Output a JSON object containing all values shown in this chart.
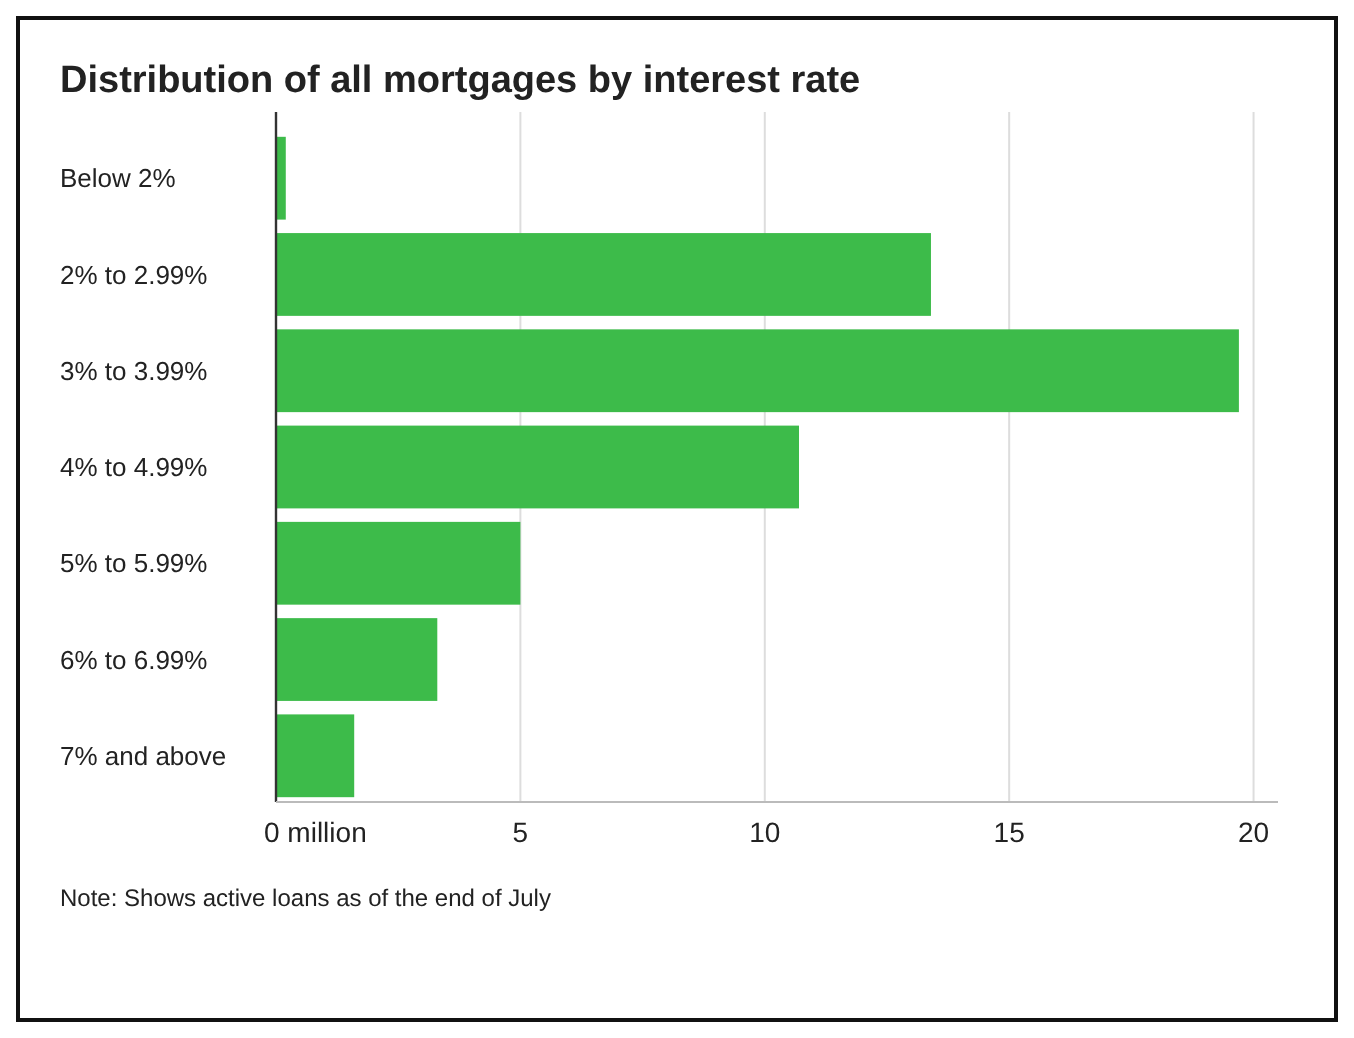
{
  "chart_data": {
    "type": "bar",
    "orientation": "horizontal",
    "title": "Distribution of all mortgages by interest rate",
    "categories": [
      "Below 2%",
      "2% to 2.99%",
      "3% to 3.99%",
      "4% to 4.99%",
      "5% to 5.99%",
      "6% to 6.99%",
      "7% and above"
    ],
    "values": [
      0.2,
      13.4,
      19.7,
      10.7,
      5.0,
      3.3,
      1.6
    ],
    "color": "#3dbb4a",
    "xlim": [
      0,
      20.5
    ],
    "xticks": [
      {
        "value": 0,
        "label": "0 million"
      },
      5,
      10,
      15,
      20
    ],
    "grid": "x",
    "annotations": [
      "Note: Shows active loans as of the end of July"
    ]
  }
}
